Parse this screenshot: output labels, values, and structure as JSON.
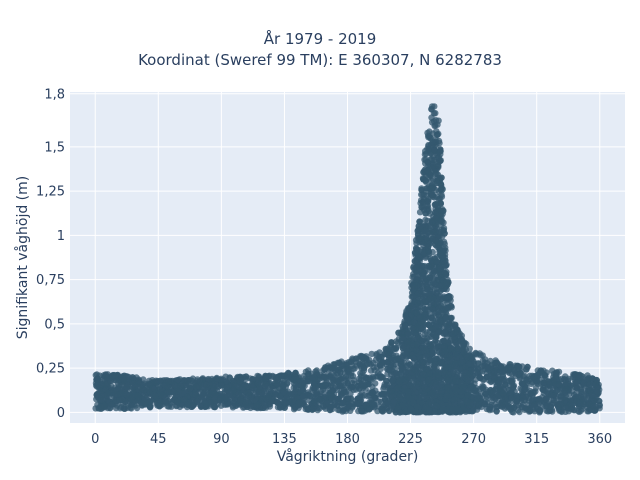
{
  "chart_data": {
    "type": "scatter",
    "title_line1": "År 1979 - 2019",
    "title_line2": "Koordinat (Sweref 99 TM): E 360307, N 6282783",
    "xlabel": "Vågriktning (grader)",
    "ylabel": "Signifikant våghöjd (m)",
    "xlim": [
      -18,
      378
    ],
    "ylim": [
      -0.06,
      1.81
    ],
    "xticks": [
      {
        "value": 0,
        "label": "0"
      },
      {
        "value": 45,
        "label": "45"
      },
      {
        "value": 90,
        "label": "90"
      },
      {
        "value": 135,
        "label": "135"
      },
      {
        "value": 180,
        "label": "180"
      },
      {
        "value": 225,
        "label": "225"
      },
      {
        "value": 270,
        "label": "270"
      },
      {
        "value": 315,
        "label": "315"
      },
      {
        "value": 360,
        "label": "360"
      }
    ],
    "yticks": [
      {
        "value": 0,
        "label": "0"
      },
      {
        "value": 0.25,
        "label": "0,25"
      },
      {
        "value": 0.5,
        "label": "0,5"
      },
      {
        "value": 0.75,
        "label": "0,75"
      },
      {
        "value": 1,
        "label": "1"
      },
      {
        "value": 1.25,
        "label": "1,25"
      },
      {
        "value": 1.5,
        "label": "1,5"
      },
      {
        "value": 1.8,
        "label": "1,8"
      }
    ],
    "grid": true,
    "background": "#e5ecf6",
    "marker_color": "#34586f",
    "series": [
      {
        "envelope_x": [
          0,
          20,
          45,
          90,
          135,
          160,
          180,
          200,
          210,
          220,
          225,
          230,
          235,
          238,
          240,
          242,
          245,
          248,
          250,
          255,
          260,
          270,
          290,
          315,
          340,
          360
        ],
        "envelope_ymin": [
          0.02,
          0.02,
          0.03,
          0.03,
          0.02,
          0.01,
          0.0,
          0.0,
          0.0,
          0.0,
          0.0,
          0.0,
          0.0,
          0.0,
          0.0,
          0.0,
          0.0,
          0.0,
          0.0,
          0.0,
          0.0,
          0.0,
          0.0,
          0.0,
          0.0,
          0.01
        ],
        "envelope_ymax": [
          0.22,
          0.21,
          0.18,
          0.2,
          0.22,
          0.25,
          0.3,
          0.34,
          0.38,
          0.5,
          0.7,
          1.05,
          1.45,
          1.65,
          1.75,
          1.74,
          1.65,
          1.3,
          0.9,
          0.55,
          0.45,
          0.35,
          0.28,
          0.25,
          0.22,
          0.2
        ]
      }
    ]
  }
}
